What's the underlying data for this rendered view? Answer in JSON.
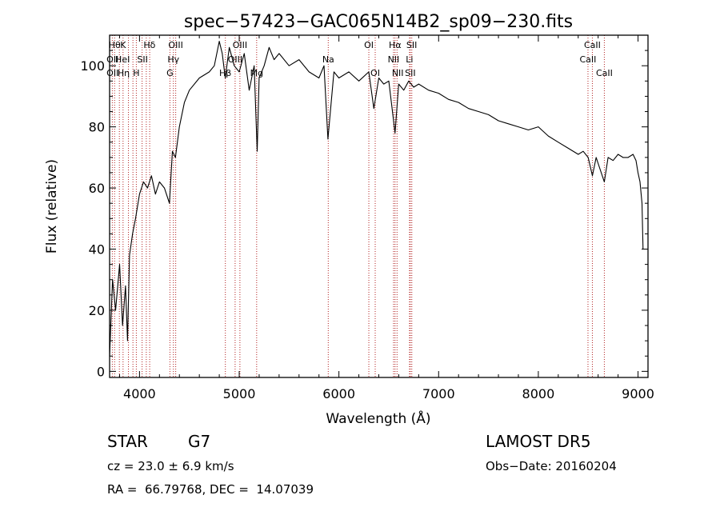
{
  "chart_data": {
    "type": "line",
    "title": "spec−57423−GAC065N14B2_sp09−230.fits",
    "xlabel": "Wavelength (Å)",
    "ylabel": "Flux (relative)",
    "xlim": [
      3700,
      9100
    ],
    "ylim": [
      -2,
      110
    ],
    "xticks": [
      4000,
      5000,
      6000,
      7000,
      8000,
      9000
    ],
    "yticks": [
      0,
      20,
      40,
      60,
      80,
      100
    ],
    "grid": false,
    "series": [
      {
        "x": [
          3700,
          3730,
          3760,
          3800,
          3830,
          3860,
          3880,
          3900,
          3930,
          3960,
          4000,
          4040,
          4080,
          4120,
          4160,
          4200,
          4250,
          4300,
          4330,
          4360,
          4400,
          4450,
          4500,
          4600,
          4700,
          4750,
          4800,
          4830,
          4860,
          4900,
          4950,
          5000,
          5050,
          5100,
          5150,
          5180,
          5200,
          5250,
          5300,
          5350,
          5400,
          5500,
          5600,
          5700,
          5800,
          5850,
          5890,
          5950,
          6000,
          6100,
          6200,
          6300,
          6350,
          6400,
          6450,
          6500,
          6563,
          6600,
          6650,
          6700,
          6750,
          6800,
          6900,
          7000,
          7100,
          7200,
          7300,
          7400,
          7500,
          7600,
          7700,
          7800,
          7900,
          8000,
          8100,
          8200,
          8300,
          8400,
          8450,
          8500,
          8542,
          8580,
          8600,
          8662,
          8700,
          8750,
          8800,
          8850,
          8900,
          8950,
          8980,
          9000,
          9020,
          9040,
          9050
        ],
        "y": [
          5,
          30,
          20,
          35,
          15,
          28,
          10,
          38,
          45,
          50,
          58,
          62,
          60,
          64,
          58,
          62,
          60,
          55,
          72,
          70,
          80,
          88,
          92,
          96,
          98,
          100,
          108,
          104,
          96,
          106,
          100,
          98,
          104,
          92,
          100,
          72,
          96,
          100,
          106,
          102,
          104,
          100,
          102,
          98,
          96,
          100,
          76,
          98,
          96,
          98,
          95,
          98,
          86,
          96,
          94,
          95,
          78,
          94,
          92,
          95,
          93,
          94,
          92,
          91,
          89,
          88,
          86,
          85,
          84,
          82,
          81,
          80,
          79,
          80,
          77,
          75,
          73,
          71,
          72,
          70,
          64,
          70,
          68,
          62,
          70,
          69,
          71,
          70,
          70,
          71,
          69,
          65,
          62,
          55,
          40
        ]
      }
    ],
    "line_labels": [
      {
        "wl": 3750,
        "text": "Hθ",
        "row": 1
      },
      {
        "wl": 3730,
        "text": "OII",
        "row": 2
      },
      {
        "wl": 3730,
        "text": "OII",
        "row": 3
      },
      {
        "wl": 3835,
        "text": "K",
        "row": 1
      },
      {
        "wl": 3830,
        "text": "HeI",
        "row": 2
      },
      {
        "wl": 3840,
        "text": "Hη",
        "row": 3
      },
      {
        "wl": 4100,
        "text": "Hδ",
        "row": 1
      },
      {
        "wl": 4030,
        "text": "SII",
        "row": 2
      },
      {
        "wl": 3968,
        "text": "H",
        "row": 3
      },
      {
        "wl": 4363,
        "text": "OIII",
        "row": 1
      },
      {
        "wl": 4340,
        "text": "Hγ",
        "row": 2
      },
      {
        "wl": 4305,
        "text": "G",
        "row": 3
      },
      {
        "wl": 5007,
        "text": "OIII",
        "row": 1
      },
      {
        "wl": 4959,
        "text": "OIII",
        "row": 2
      },
      {
        "wl": 4861,
        "text": "Hβ",
        "row": 3
      },
      {
        "wl": 5175,
        "text": "Mg",
        "row": 3
      },
      {
        "wl": 5893,
        "text": "Na",
        "row": 2
      },
      {
        "wl": 6300,
        "text": "OI",
        "row": 1
      },
      {
        "wl": 6364,
        "text": "OI",
        "row": 3
      },
      {
        "wl": 6563,
        "text": "Hα",
        "row": 1
      },
      {
        "wl": 6730,
        "text": "SII",
        "row": 1
      },
      {
        "wl": 6548,
        "text": "NII",
        "row": 2
      },
      {
        "wl": 6708,
        "text": "Li",
        "row": 2
      },
      {
        "wl": 6590,
        "text": "NII",
        "row": 3
      },
      {
        "wl": 6716,
        "text": "SII",
        "row": 3
      },
      {
        "wl": 8542,
        "text": "CaII",
        "row": 1
      },
      {
        "wl": 8498,
        "text": "CaII",
        "row": 2
      },
      {
        "wl": 8662,
        "text": "CaII",
        "row": 3
      }
    ],
    "line_markers": [
      3727,
      3750,
      3798,
      3835,
      3889,
      3934,
      3968,
      4026,
      4068,
      4102,
      4305,
      4340,
      4363,
      4861,
      4959,
      5007,
      5175,
      5893,
      6300,
      6364,
      6548,
      6563,
      6583,
      6708,
      6716,
      6731,
      8498,
      8542,
      8662
    ]
  },
  "info": {
    "object_class": "STAR",
    "subclass": "G7",
    "survey": "LAMOST DR5",
    "cz": "cz = 23.0 ± 6.9 km/s",
    "obs_date": "Obs−Date: 20160204",
    "coords": "RA =  66.79768, DEC =  14.07039"
  },
  "colors": {
    "marker": "#b22222",
    "line": "#000000"
  }
}
